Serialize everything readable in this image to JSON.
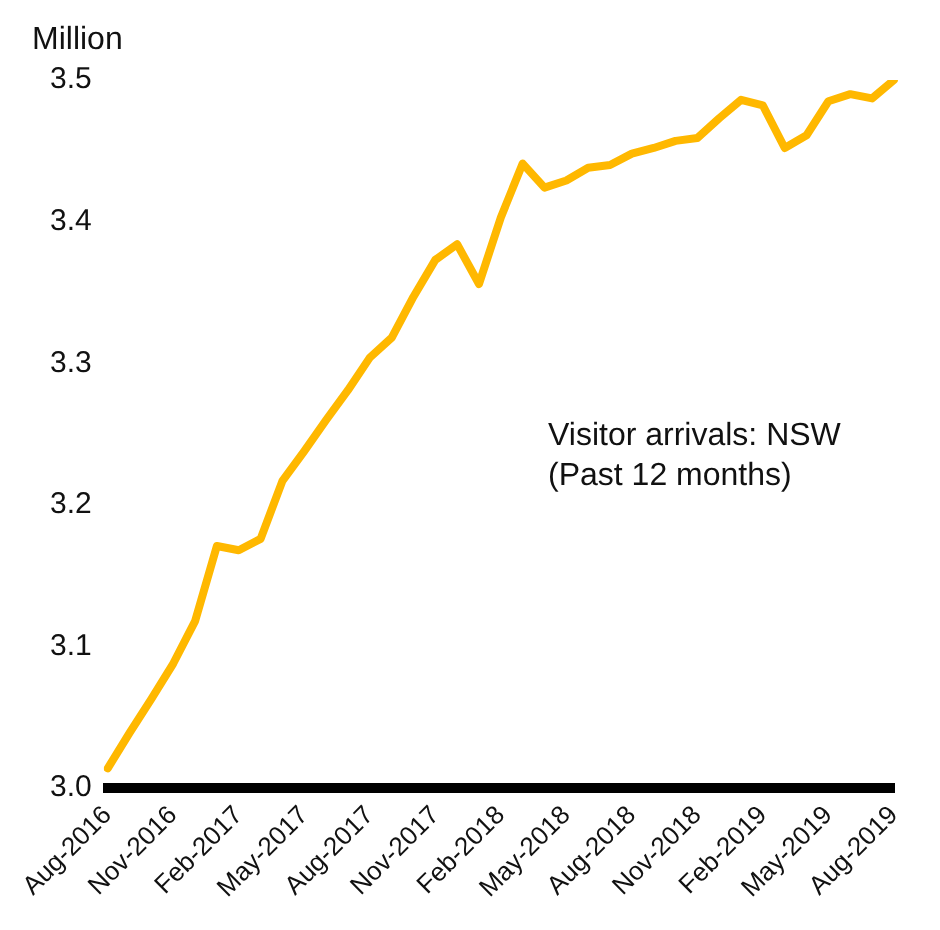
{
  "chart_data": {
    "type": "line",
    "ylabel": "Million",
    "annotations": [
      "Visitor arrivals: NSW\n(Past 12 months)"
    ],
    "categories": [
      "Aug-2016",
      null,
      null,
      "Nov-2016",
      null,
      null,
      "Feb-2017",
      null,
      null,
      "May-2017",
      null,
      null,
      "Aug-2017",
      null,
      null,
      "Nov-2017",
      null,
      null,
      "Feb-2018",
      null,
      null,
      "May-2018",
      null,
      null,
      "Aug-2018",
      null,
      null,
      "Nov-2018",
      null,
      null,
      "Feb-2019",
      null,
      null,
      "May-2019",
      null,
      null,
      "Aug-2019"
    ],
    "series": [
      {
        "color": "#ffb800",
        "values": [
          3.014,
          3.039,
          3.063,
          3.088,
          3.118,
          3.171,
          3.168,
          3.176,
          3.217,
          3.238,
          3.26,
          3.281,
          3.304,
          3.318,
          3.347,
          3.373,
          3.384,
          3.356,
          3.403,
          3.441,
          3.424,
          3.429,
          3.438,
          3.44,
          3.448,
          3.452,
          3.457,
          3.459,
          3.473,
          3.486,
          3.482,
          3.452,
          3.461,
          3.485,
          3.49,
          3.487,
          3.5
        ]
      }
    ],
    "ylim": [
      3.0,
      3.5
    ],
    "yticks": [
      {
        "value": 3,
        "label": "3.0"
      },
      3.1,
      3.2,
      3.3,
      3.4,
      3.5
    ],
    "grid": false,
    "legend": false,
    "marker": "none",
    "line_style": "solid"
  }
}
